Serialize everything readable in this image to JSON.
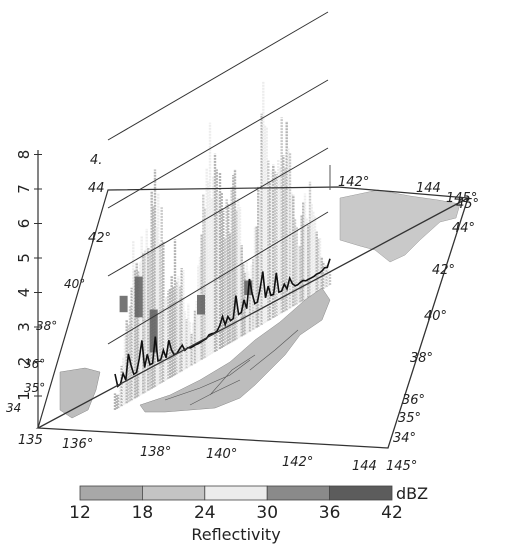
{
  "chart_data": {
    "type": "3d-radar-reflectivity",
    "title": "",
    "zlabel": "",
    "z_ticks": [
      "1",
      "2",
      "3",
      "4",
      "5",
      "6",
      "7",
      "8"
    ],
    "front_lon_ticks": [
      "135",
      "136°",
      "138°",
      "140°",
      "142°",
      "144",
      "145°"
    ],
    "back_lon_ticks": [
      "142°",
      "144",
      "145°"
    ],
    "right_lat_ticks": [
      "34°",
      "35°",
      "36°",
      "38°",
      "40°",
      "42°",
      "44°",
      "45°"
    ],
    "left_lat_ticks": [
      "34",
      "35°",
      "36°",
      "38°",
      "40°"
    ],
    "slant_labels": [
      "42°",
      "44",
      "4."
    ],
    "colorbar": {
      "unit": "dBZ",
      "label": "Reflectivity",
      "ticks": [
        "12",
        "18",
        "24",
        "30",
        "36",
        "42"
      ],
      "values": [
        12,
        18,
        24,
        30,
        36,
        42
      ],
      "colors": [
        "#a8a8a8",
        "#c4c4c4",
        "#ececec",
        "#8a8a8a",
        "#5c5c5c"
      ]
    },
    "curtain_dark_spikes": [
      {
        "pos": 0.04,
        "h": 0.42,
        "depth": 0.15
      },
      {
        "pos": 0.11,
        "h": 0.46,
        "depth": 0.34
      },
      {
        "pos": 0.18,
        "h": 0.3,
        "depth": 0.55
      },
      {
        "pos": 0.4,
        "h": 0.25,
        "depth": 0.3
      },
      {
        "pos": 0.62,
        "h": 0.2,
        "depth": 0.28
      }
    ]
  }
}
